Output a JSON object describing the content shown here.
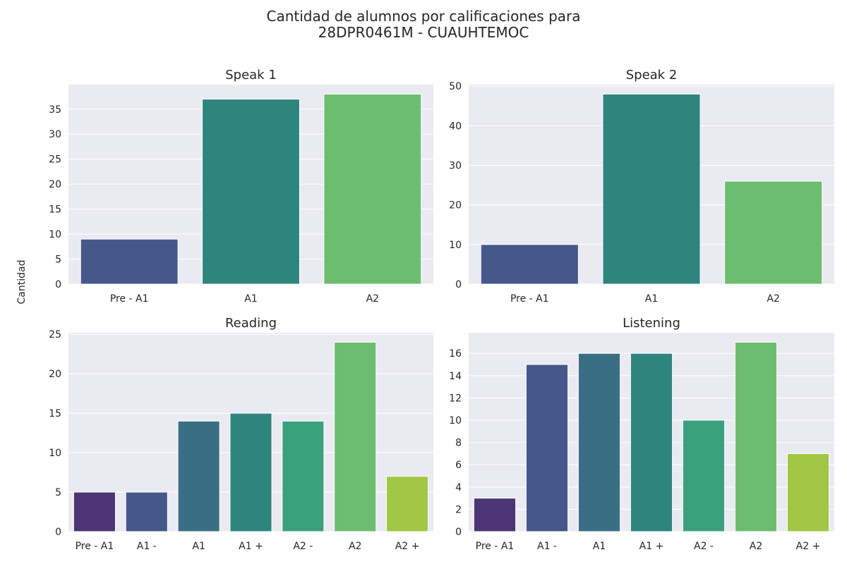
{
  "figure": {
    "title_line1": "Cantidad de alumnos por calificaciones para",
    "title_line2": "28DPR0461M - CUAUHTEMOC",
    "ylabel": "Cantidad",
    "background": "#eaeaf2",
    "grid_color": "#ffffff"
  },
  "chart_data": [
    {
      "type": "bar",
      "title": "Speak 1",
      "categories": [
        "Pre - A1",
        "A1",
        "A2"
      ],
      "values": [
        9,
        37,
        38
      ],
      "colors": [
        "#46578a",
        "#2e857e",
        "#6cbd6f"
      ],
      "ylim": [
        0,
        39.9
      ],
      "yticks": [
        0,
        5,
        10,
        15,
        20,
        25,
        30,
        35
      ],
      "grid": true
    },
    {
      "type": "bar",
      "title": "Speak 2",
      "categories": [
        "Pre - A1",
        "A1",
        "A2"
      ],
      "values": [
        10,
        48,
        26
      ],
      "colors": [
        "#46578a",
        "#2e857e",
        "#6cbd6f"
      ],
      "ylim": [
        0,
        50.4
      ],
      "yticks": [
        0,
        10,
        20,
        30,
        40,
        50
      ],
      "grid": true
    },
    {
      "type": "bar",
      "title": "Reading",
      "categories": [
        "Pre - A1",
        "A1 -",
        "A1",
        "A1 +",
        "A2 -",
        "A2",
        "A2 +"
      ],
      "values": [
        5,
        5,
        14,
        15,
        14,
        24,
        7
      ],
      "colors": [
        "#4c3574",
        "#46578a",
        "#3a6e83",
        "#2e857e",
        "#3ba17c",
        "#6cbd6f",
        "#a2c744"
      ],
      "ylim": [
        0,
        25.2
      ],
      "yticks": [
        0,
        5,
        10,
        15,
        20,
        25
      ],
      "grid": true
    },
    {
      "type": "bar",
      "title": "Listening",
      "categories": [
        "Pre - A1",
        "A1 -",
        "A1",
        "A1 +",
        "A2 -",
        "A2",
        "A2 +"
      ],
      "values": [
        3,
        15,
        16,
        16,
        10,
        17,
        7
      ],
      "colors": [
        "#4c3574",
        "#46578a",
        "#3a6e83",
        "#2e857e",
        "#3ba17c",
        "#6cbd6f",
        "#a2c744"
      ],
      "ylim": [
        0,
        17.85
      ],
      "yticks": [
        0,
        2,
        4,
        6,
        8,
        10,
        12,
        14,
        16
      ],
      "grid": true
    }
  ]
}
